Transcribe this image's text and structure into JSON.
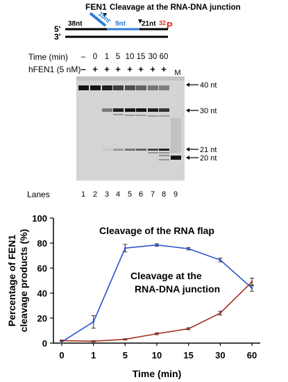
{
  "substrate": {
    "enzyme_label": "FEN1",
    "cleavage_title": "Cleavage at the RNA-DNA junction",
    "flap_label": "10nt",
    "seg_38": "38nt",
    "seg_9": "9nt",
    "seg_21": "21nt",
    "end5": "5'",
    "end3": "3'",
    "label_32": "32",
    "label_p": "P",
    "colors": {
      "rna": "#2b7bd6",
      "label": "#e02020"
    }
  },
  "gel": {
    "time_label": "Time (min)",
    "enzyme_row_label": "hFEN1 (5 nM)",
    "times": [
      "–",
      "0",
      "1",
      "5",
      "10",
      "15",
      "30",
      "60"
    ],
    "enzyme": [
      "–",
      "+",
      "+",
      "+",
      "+",
      "+",
      "+",
      "+"
    ],
    "marker_label": "M",
    "size_labels": [
      "40 nt",
      "30 nt",
      "21 nt",
      "20 nt"
    ],
    "lanes_label": "Lanes",
    "lane_numbers": [
      "1",
      "2",
      "3",
      "4",
      "5",
      "6",
      "7",
      "8",
      "9"
    ],
    "band_intensity": {
      "nt40": [
        1.0,
        1.0,
        0.95,
        0.8,
        0.7,
        0.6,
        0.5,
        0.45,
        0
      ],
      "nt30": [
        0,
        0,
        0.45,
        0.95,
        1.0,
        1.0,
        0.95,
        0.85,
        0
      ],
      "nt21": [
        0,
        0,
        0.05,
        0.3,
        0.5,
        0.6,
        0.75,
        0.95,
        0
      ],
      "nt20": [
        0,
        0,
        0,
        0,
        0,
        0,
        0,
        0,
        1.0
      ]
    }
  },
  "chart_data": {
    "type": "line",
    "ylabel_line1": "Percentage of FEN1",
    "ylabel_line2": "cleavage products (%)",
    "xlabel": "Time (min)",
    "categories": [
      "0",
      "1",
      "5",
      "10",
      "15",
      "30",
      "60"
    ],
    "yticks": [
      "0",
      "20",
      "40",
      "60",
      "80",
      "100"
    ],
    "ylim": [
      0,
      100
    ],
    "series": [
      {
        "name": "Cleavage of the RNA flap",
        "color": "#2b50d0",
        "values": [
          1,
          17,
          76,
          78.5,
          75.5,
          66.5,
          44
        ],
        "err": [
          1,
          5,
          3,
          1,
          1,
          1.5,
          2.5
        ]
      },
      {
        "name_line1": "Cleavage at the",
        "name_line2": "RNA-DNA junction",
        "color": "#a0301e",
        "values": [
          2,
          1.5,
          3,
          7.5,
          11.5,
          24,
          49
        ],
        "err": [
          0.5,
          0.5,
          0.5,
          0.8,
          0.8,
          1.5,
          3
        ]
      }
    ]
  }
}
